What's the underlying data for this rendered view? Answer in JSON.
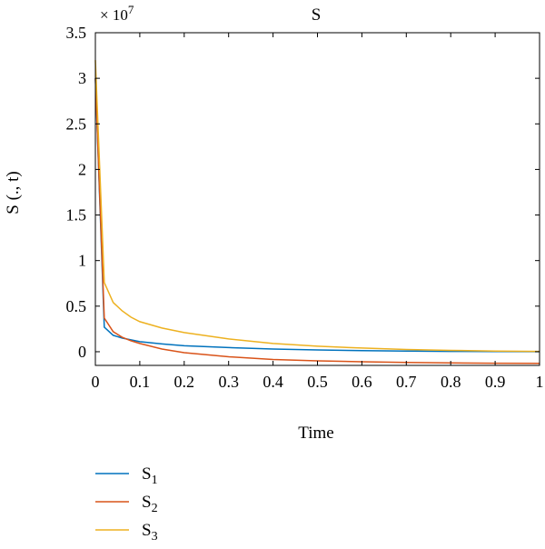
{
  "chart_data": {
    "type": "line",
    "title": "S",
    "xlabel": "Time",
    "ylabel": "S (., t)",
    "exponent_label": "× 10",
    "exponent_power": "7",
    "xlim": [
      0,
      1
    ],
    "ylim": [
      -0.15,
      3.5
    ],
    "x_ticks": [
      0,
      0.1,
      0.2,
      0.3,
      0.4,
      0.5,
      0.6,
      0.7,
      0.8,
      0.9,
      1
    ],
    "x_tick_labels": [
      "0",
      "0.1",
      "0.2",
      "0.3",
      "0.4",
      "0.5",
      "0.6",
      "0.7",
      "0.8",
      "0.9",
      "1"
    ],
    "y_ticks": [
      0,
      0.5,
      1,
      1.5,
      2,
      2.5,
      3,
      3.5
    ],
    "y_tick_labels": [
      "0",
      "0.5",
      "1",
      "1.5",
      "2",
      "2.5",
      "3",
      "3.5"
    ],
    "grid": false,
    "legend_position": "bottom-left",
    "series": [
      {
        "name": "S",
        "subscript": "1",
        "color": "#0072BD",
        "x": [
          0,
          0.02,
          0.04,
          0.06,
          0.08,
          0.1,
          0.15,
          0.2,
          0.3,
          0.4,
          0.5,
          0.6,
          0.7,
          0.8,
          0.9,
          1
        ],
        "y": [
          3.0,
          0.27,
          0.18,
          0.15,
          0.13,
          0.11,
          0.085,
          0.065,
          0.045,
          0.03,
          0.02,
          0.012,
          0.007,
          0.004,
          0.002,
          0.001
        ]
      },
      {
        "name": "S",
        "subscript": "2",
        "color": "#D95319",
        "x": [
          0,
          0.02,
          0.04,
          0.06,
          0.08,
          0.1,
          0.15,
          0.2,
          0.3,
          0.4,
          0.5,
          0.6,
          0.7,
          0.8,
          0.9,
          1
        ],
        "y": [
          3.0,
          0.37,
          0.22,
          0.16,
          0.12,
          0.09,
          0.03,
          -0.01,
          -0.055,
          -0.085,
          -0.1,
          -0.11,
          -0.118,
          -0.123,
          -0.126,
          -0.128
        ]
      },
      {
        "name": "S",
        "subscript": "3",
        "color": "#EDB120",
        "x": [
          0,
          0.02,
          0.04,
          0.06,
          0.08,
          0.1,
          0.15,
          0.2,
          0.3,
          0.4,
          0.5,
          0.6,
          0.7,
          0.8,
          0.9,
          1
        ],
        "y": [
          3.2,
          0.76,
          0.54,
          0.45,
          0.38,
          0.33,
          0.26,
          0.21,
          0.14,
          0.09,
          0.06,
          0.04,
          0.025,
          0.015,
          0.008,
          0.004
        ]
      }
    ]
  }
}
